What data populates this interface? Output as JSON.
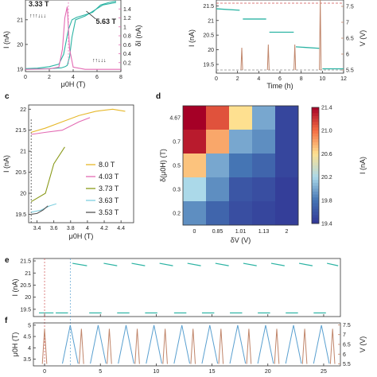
{
  "figure": {
    "panel_labels": [
      "c",
      "d",
      "e",
      "f"
    ]
  },
  "colors": {
    "teal": "#2bb3a3",
    "pink": "#e36bb3",
    "brown": "#c0856a",
    "blue": "#5aa0d0",
    "red": "#d05050",
    "dark": "#333333"
  },
  "chart_data": [
    {
      "id": "a",
      "type": "line",
      "xlabel": "μ0H (T)",
      "ylabel": "I (nA)",
      "y2label": "δI (nA)",
      "xlim": [
        0,
        8
      ],
      "ylim": [
        18.9,
        21.8
      ],
      "y2lim": [
        0,
        1.6
      ],
      "xticks": [
        0,
        2,
        4,
        6,
        8
      ],
      "yticks": [
        19,
        20,
        21
      ],
      "y2ticks": [
        0.2,
        0.4,
        0.6,
        0.8,
        1.0,
        1.2,
        1.4
      ],
      "annotations": [
        "3.33 T",
        "5.63 T"
      ],
      "series": [
        {
          "color": "teal",
          "x": [
            0,
            1,
            2,
            2.8,
            3.2,
            3.6,
            3.9,
            4.3,
            5,
            5.63,
            6.3,
            7,
            7.6
          ],
          "y": [
            19.02,
            19.04,
            19.1,
            19.2,
            19.6,
            20.6,
            21.0,
            21.1,
            21.2,
            21.3,
            21.6,
            21.7,
            21.75
          ]
        },
        {
          "color": "teal",
          "x": [
            7.6,
            6.5,
            5,
            4.2,
            3.9,
            3.7,
            3.5,
            3.33,
            3,
            2,
            0
          ],
          "y": [
            21.7,
            21.6,
            21.15,
            21.0,
            20.3,
            19.5,
            19.15,
            19.1,
            19.05,
            19.02,
            19.0
          ]
        },
        {
          "color": "pink",
          "axis": "y2",
          "x": [
            0,
            2,
            2.8,
            3.1,
            3.3,
            3.5,
            3.7,
            4.0,
            5,
            8
          ],
          "y": [
            0.05,
            0.06,
            0.1,
            0.5,
            1.2,
            1.45,
            0.5,
            0.1,
            0.05,
            0.05
          ]
        }
      ]
    },
    {
      "id": "b",
      "type": "line",
      "xlabel": "Time (h)",
      "ylabel": "I (nA)",
      "y2label": "V (V)",
      "xlim": [
        0,
        12
      ],
      "ylim": [
        19.2,
        21.7
      ],
      "y2lim": [
        5.4,
        7.7
      ],
      "xticks": [
        0,
        2,
        4,
        6,
        8,
        10,
        12
      ],
      "yticks": [
        19.5,
        20.0,
        20.5,
        21.0,
        21.5
      ],
      "y2ticks": [
        5.5,
        6.0,
        6.5,
        7.0,
        7.5
      ],
      "series": [
        {
          "color": "teal",
          "segments": [
            {
              "x": [
                0,
                2.2
              ],
              "y": [
                21.4,
                21.35
              ]
            },
            {
              "x": [
                2.5,
                4.7
              ],
              "y": [
                21.05,
                21.05
              ]
            },
            {
              "x": [
                5.0,
                7.3
              ],
              "y": [
                20.6,
                20.6
              ]
            },
            {
              "x": [
                7.5,
                9.7
              ],
              "y": [
                20.1,
                20.05
              ]
            },
            {
              "x": [
                10.0,
                12
              ],
              "y": [
                19.35,
                19.35
              ]
            }
          ]
        },
        {
          "color": "brown",
          "axis": "y2",
          "pulses_at": [
            2.4,
            4.9,
            7.4,
            9.8
          ],
          "pulse_heights": [
            6.2,
            6.3,
            6.3,
            7.7
          ],
          "baseline": 5.5
        }
      ]
    },
    {
      "id": "c",
      "type": "line",
      "xlabel": "μ0H (T)",
      "ylabel": "I (nA)",
      "xlim": [
        3.3,
        4.55
      ],
      "ylim": [
        19.3,
        22.1
      ],
      "xticks": [
        3.4,
        3.6,
        3.8,
        4.0,
        4.2,
        4.4
      ],
      "yticks": [
        19.5,
        20.0,
        20.5,
        21.0,
        21.5,
        22.0
      ],
      "legend": "right",
      "series": [
        {
          "name": "8.0 T",
          "color": "#e6b82a",
          "x": [
            3.33,
            3.5,
            3.7,
            3.9,
            4.1,
            4.3,
            4.45
          ],
          "y": [
            21.45,
            21.55,
            21.7,
            21.85,
            21.95,
            22.0,
            21.95
          ]
        },
        {
          "name": "4.03 T",
          "color": "#e36bb3",
          "x": [
            3.33,
            3.5,
            3.7,
            3.9,
            4.03
          ],
          "y": [
            21.4,
            21.45,
            21.5,
            21.7,
            21.8
          ]
        },
        {
          "name": "3.73 T",
          "color": "#8a9a1a",
          "x": [
            3.33,
            3.5,
            3.6,
            3.73
          ],
          "y": [
            19.8,
            20.0,
            20.7,
            21.1
          ]
        },
        {
          "name": "3.63 T",
          "color": "#7fd0e0",
          "x": [
            3.33,
            3.45,
            3.55,
            3.63
          ],
          "y": [
            19.55,
            19.6,
            19.7,
            19.75
          ]
        },
        {
          "name": "3.53 T",
          "color": "#555555",
          "x": [
            3.33,
            3.4,
            3.47,
            3.53
          ],
          "y": [
            19.5,
            19.52,
            19.6,
            19.7
          ]
        }
      ]
    },
    {
      "id": "d",
      "type": "heatmap",
      "xlabel": "δV (V)",
      "ylabel": "δ(μ0H) (T)",
      "colorbar_label": "I (nA)",
      "xcategories": [
        "0",
        "0.85",
        "1.01",
        "1.13",
        "2"
      ],
      "ycategories": [
        "4.67",
        "0.7",
        "0.5",
        "0.3",
        "0.2"
      ],
      "zlim": [
        19.4,
        21.4
      ],
      "colorbar_ticks": [
        19.4,
        19.8,
        20.2,
        20.6,
        21.0,
        21.4
      ],
      "values": [
        [
          21.4,
          21.1,
          20.6,
          20.0,
          19.5
        ],
        [
          21.3,
          20.8,
          20.0,
          19.9,
          19.5
        ],
        [
          20.7,
          20.0,
          19.8,
          19.7,
          19.5
        ],
        [
          20.2,
          19.9,
          19.6,
          19.55,
          19.45
        ],
        [
          19.9,
          19.7,
          19.55,
          19.5,
          19.45
        ]
      ]
    },
    {
      "id": "e",
      "type": "line",
      "ylabel": "I (nA)",
      "xlim": [
        -1,
        26.5
      ],
      "ylim": [
        19.2,
        21.6
      ],
      "yticks": [
        19.5,
        20.0,
        20.5,
        21.0,
        21.5
      ],
      "series": [
        {
          "color": "teal",
          "high_segments": [
            [
              2.5,
              3.8
            ],
            [
              5.3,
              6.5
            ],
            [
              7.8,
              9.0
            ],
            [
              10.3,
              11.5
            ],
            [
              12.8,
              14.0
            ],
            [
              15.3,
              16.5
            ],
            [
              17.8,
              19.0
            ],
            [
              20.3,
              21.5
            ],
            [
              22.8,
              24.0
            ],
            [
              25.3,
              26.3
            ]
          ],
          "high": 21.35,
          "low_segments": [
            [
              -0.5,
              0.8
            ],
            [
              1.0,
              2.1
            ],
            [
              4.0,
              5.1
            ],
            [
              6.5,
              7.6
            ],
            [
              9.0,
              10.1
            ],
            [
              11.6,
              12.7
            ],
            [
              14.1,
              15.2
            ],
            [
              16.6,
              17.7
            ],
            [
              19.1,
              20.2
            ],
            [
              21.6,
              22.7
            ],
            [
              24.1,
              25.2
            ]
          ],
          "low": 19.35
        }
      ]
    },
    {
      "id": "f",
      "type": "line",
      "ylabel": "μ0H (T)",
      "y2label": "V (V)",
      "xlim": [
        -1,
        26.5
      ],
      "ylim": [
        3.2,
        5.1
      ],
      "y2lim": [
        5.4,
        7.6
      ],
      "xticks": [
        0,
        5,
        10,
        15,
        20,
        25
      ],
      "yticks": [
        3.5,
        4.0,
        4.5,
        5.0
      ],
      "y2ticks": [
        5.5,
        6.0,
        6.5,
        7.0,
        7.5
      ],
      "series": [
        {
          "color": "blue",
          "triangles_at": [
            2.3,
            4.8,
            7.3,
            9.8,
            12.3,
            14.8,
            17.3,
            19.8,
            22.3,
            24.8
          ],
          "peak": 5.0,
          "base": 3.3
        },
        {
          "color": "brown",
          "axis": "y2",
          "pulses_at": [
            0,
            3.3,
            5.8,
            8.3,
            10.8,
            13.3,
            15.8,
            18.3,
            20.8,
            23.3,
            25.8
          ],
          "peak": 7.3,
          "base": 5.5
        }
      ]
    }
  ]
}
